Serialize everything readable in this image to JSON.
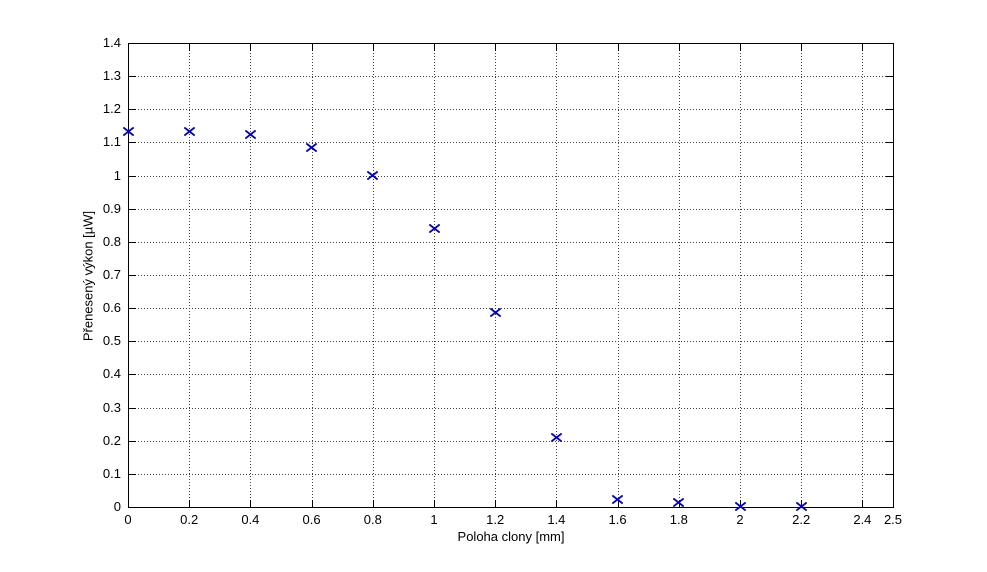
{
  "figure": {
    "background_color": "#ffffff"
  },
  "chart_data": {
    "type": "scatter",
    "title": "",
    "xlabel": "Poloha clony [mm]",
    "ylabel": "Přenesený výkon [µW]",
    "xlim": [
      0,
      2.5
    ],
    "ylim": [
      0,
      1.4
    ],
    "grid": true,
    "grid_style": "dotted",
    "legend": "none",
    "marker": "x",
    "marker_color": "#0000cc",
    "axis_color": "#000000",
    "x": [
      0,
      0.2,
      0.4,
      0.6,
      0.8,
      1,
      1.2,
      1.4,
      1.6,
      1.8,
      2,
      2.2
    ],
    "y": [
      1.145,
      1.145,
      1.135,
      1.097,
      1.012,
      0.852,
      0.598,
      0.222,
      0.035,
      0.027,
      0.014,
      0.014
    ],
    "xticks": [
      0,
      0.2,
      0.4,
      0.6,
      0.8,
      1,
      1.2,
      1.4,
      1.6,
      1.8,
      2,
      2.2,
      2.4,
      2.5
    ],
    "xtick_labels": [
      "0",
      "0.2",
      "0.4",
      "0.6",
      "0.8",
      "1",
      "1.2",
      "1.4",
      "1.6",
      "1.8",
      "2",
      "2.2",
      "2.4",
      "2.5"
    ],
    "yticks": [
      0,
      0.1,
      0.2,
      0.3,
      0.4,
      0.5,
      0.6,
      0.7,
      0.8,
      0.9,
      1,
      1.1,
      1.2,
      1.3,
      1.4
    ],
    "ytick_labels": [
      "0",
      "0.1",
      "0.2",
      "0.3",
      "0.4",
      "0.5",
      "0.6",
      "0.7",
      "0.8",
      "0.9",
      "1",
      "1.1",
      "1.2",
      "1.3",
      "1.4"
    ]
  }
}
